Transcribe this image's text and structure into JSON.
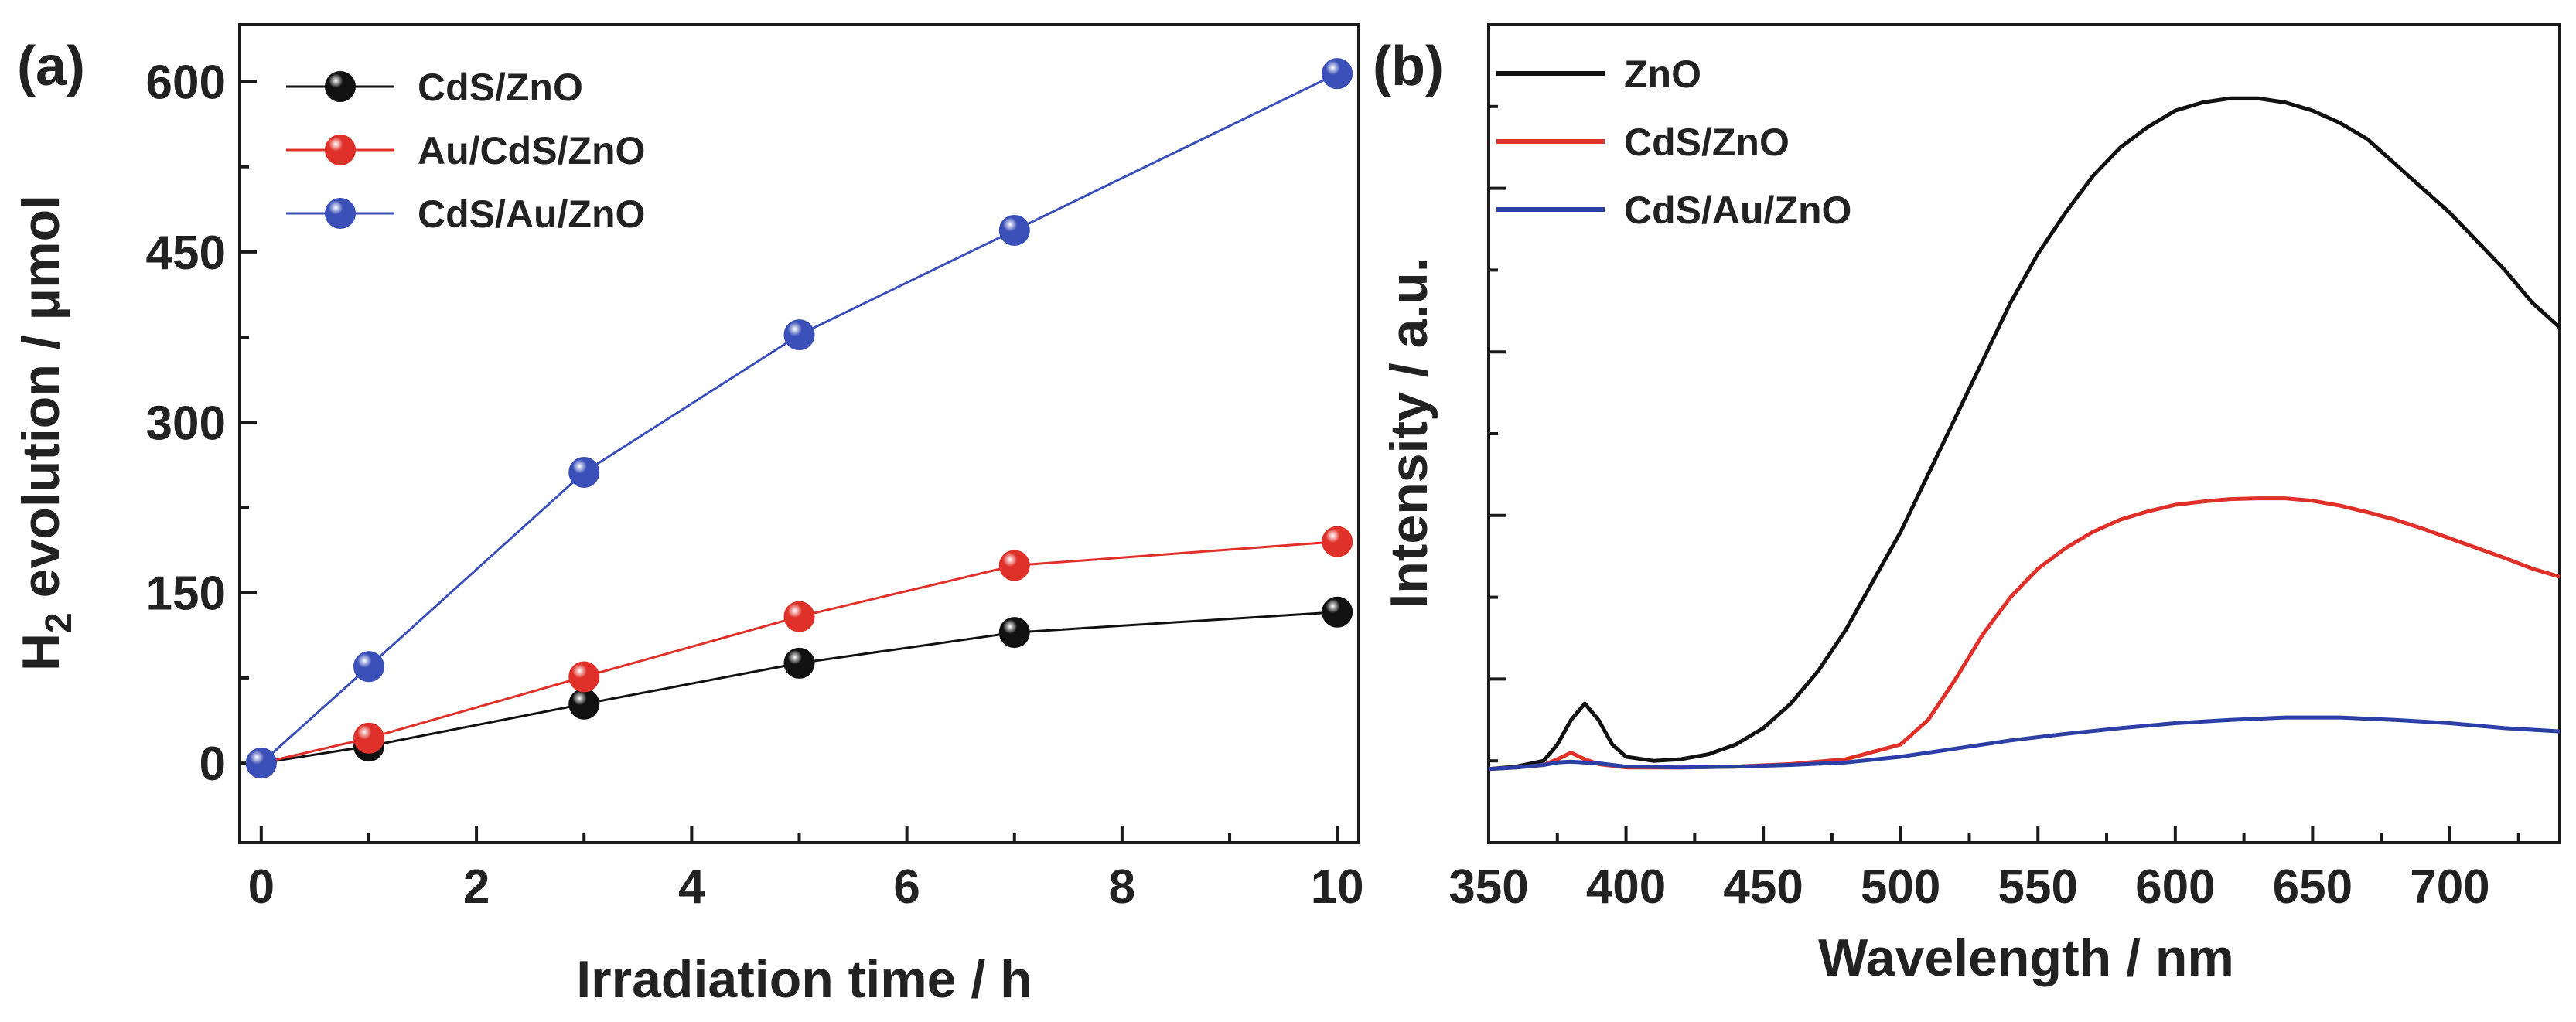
{
  "chart_data": [
    {
      "panel": "(a)",
      "type": "line",
      "xlabel": "Irradiation time / h",
      "ylabel_main": "H",
      "ylabel_sub": "2",
      "ylabel_rest": " evolution / μmol",
      "xlim": [
        -0.2,
        10.2
      ],
      "ylim": [
        -70,
        650
      ],
      "xticks": [
        0,
        2,
        4,
        6,
        8,
        10
      ],
      "yticks": [
        0,
        150,
        300,
        450,
        600
      ],
      "legend_position": "top-left",
      "x": [
        0,
        1,
        3,
        5,
        7,
        10
      ],
      "series": [
        {
          "name": "CdS/ZnO",
          "color": "#111111",
          "values": [
            0,
            15,
            52,
            88,
            115,
            133
          ]
        },
        {
          "name": "Au/CdS/ZnO",
          "color": "#e0302a",
          "values": [
            0,
            22,
            76,
            129,
            174,
            195
          ]
        },
        {
          "name": "CdS/Au/ZnO",
          "color": "#3a4fb8",
          "values": [
            0,
            85,
            256,
            377,
            469,
            607
          ]
        }
      ]
    },
    {
      "panel": "(b)",
      "type": "line",
      "xlabel": "Wavelength / nm",
      "ylabel": "Intensity / a.u.",
      "xlim": [
        350,
        740
      ],
      "ylim": [
        0,
        100
      ],
      "xticks": [
        350,
        400,
        450,
        500,
        550,
        600,
        650,
        700
      ],
      "legend_position": "top-left",
      "series": [
        {
          "name": "ZnO",
          "color": "#111111",
          "x": [
            350,
            360,
            370,
            375,
            380,
            385,
            390,
            395,
            400,
            410,
            420,
            430,
            440,
            450,
            460,
            470,
            480,
            490,
            500,
            510,
            520,
            530,
            540,
            550,
            560,
            570,
            580,
            590,
            600,
            610,
            620,
            630,
            640,
            650,
            660,
            670,
            680,
            690,
            700,
            710,
            720,
            730,
            740
          ],
          "values": [
            9,
            9.3,
            10,
            12,
            15,
            17,
            15,
            12,
            10.5,
            10,
            10.2,
            10.8,
            12,
            14,
            17,
            21,
            26,
            32,
            38,
            45,
            52,
            59,
            66,
            72,
            77,
            81.5,
            85,
            87.5,
            89.5,
            90.5,
            91,
            91,
            90.5,
            89.5,
            88,
            86,
            83,
            80,
            77,
            73.5,
            70,
            66,
            63
          ]
        },
        {
          "name": "CdS/ZnO",
          "color": "#e0302a",
          "x": [
            350,
            360,
            370,
            375,
            380,
            385,
            390,
            400,
            420,
            440,
            460,
            480,
            500,
            510,
            520,
            530,
            540,
            550,
            560,
            570,
            580,
            590,
            600,
            610,
            620,
            630,
            640,
            650,
            660,
            670,
            680,
            690,
            700,
            710,
            720,
            730,
            740
          ],
          "values": [
            9,
            9.2,
            9.5,
            10.2,
            11,
            10.2,
            9.6,
            9.2,
            9.2,
            9.3,
            9.6,
            10.2,
            12,
            15,
            20,
            25.5,
            30,
            33.5,
            36,
            38,
            39.5,
            40.5,
            41.3,
            41.7,
            42,
            42.1,
            42.1,
            41.8,
            41.2,
            40.4,
            39.5,
            38.4,
            37.2,
            36,
            34.8,
            33.5,
            32.5
          ]
        },
        {
          "name": "CdS/Au/ZnO",
          "color": "#2b3fa6",
          "x": [
            350,
            360,
            370,
            375,
            380,
            390,
            400,
            420,
            440,
            460,
            480,
            500,
            520,
            540,
            560,
            580,
            600,
            620,
            640,
            660,
            680,
            700,
            720,
            740
          ],
          "values": [
            9,
            9.2,
            9.5,
            9.8,
            9.9,
            9.7,
            9.3,
            9.2,
            9.3,
            9.5,
            9.8,
            10.5,
            11.5,
            12.5,
            13.3,
            14,
            14.6,
            15,
            15.3,
            15.3,
            15,
            14.6,
            14,
            13.6
          ]
        }
      ]
    }
  ]
}
